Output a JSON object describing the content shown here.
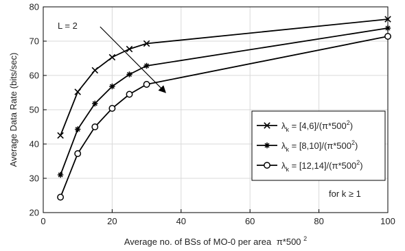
{
  "chart_data": {
    "type": "line",
    "title": "",
    "xlabel": "Average no. of BSs of MO-0 per area",
    "xlabel_suffix": "π*500",
    "xlabel_sup": "2",
    "ylabel": "Average Data Rate (bits/sec)",
    "xlim": [
      0,
      100
    ],
    "ylim": [
      20,
      80
    ],
    "xticks": [
      0,
      20,
      40,
      60,
      80,
      100
    ],
    "yticks": [
      20,
      30,
      40,
      50,
      60,
      70,
      80
    ],
    "grid": true,
    "legend_position": "right",
    "x": [
      5,
      10,
      15,
      20,
      25,
      30,
      100
    ],
    "series": [
      {
        "name": "[4,6]/(π*500",
        "marker": "x",
        "values": [
          42.5,
          55.2,
          61.5,
          65.3,
          67.7,
          69.3,
          76.4
        ]
      },
      {
        "name": "[8,10]/(π*500",
        "marker": "asterisk",
        "values": [
          31.0,
          44.3,
          51.8,
          56.8,
          60.3,
          62.8,
          73.8
        ]
      },
      {
        "name": "[12,14]/(π*500",
        "marker": "circle",
        "values": [
          24.5,
          37.2,
          45.0,
          50.4,
          54.5,
          57.4,
          71.4
        ]
      }
    ],
    "legend_symbol": "λ",
    "legend_subscript": "k",
    "legend_sup": "2",
    "legend_close": ")",
    "annotations": {
      "L_label": "L = 2",
      "k_label": "for k ≥ 1",
      "arrow_from": [
        16.5,
        74.2
      ],
      "arrow_to": [
        35.5,
        55.0
      ]
    },
    "line_color": "#000000",
    "grid_color": "#d9d9d9"
  }
}
